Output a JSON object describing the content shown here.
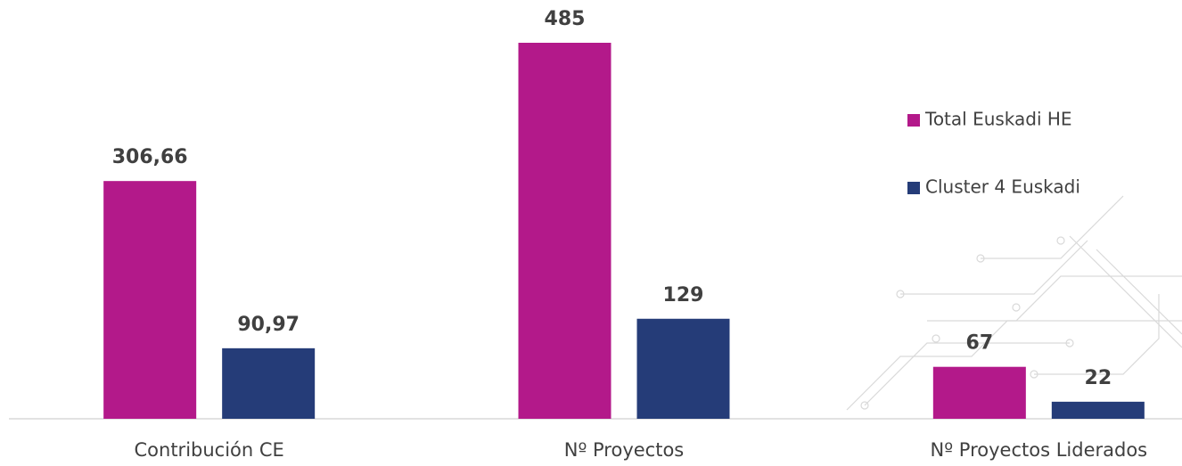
{
  "chart_data": {
    "type": "bar",
    "categories": [
      "Contribución CE",
      "Nº Proyectos",
      "Nº Proyectos Liderados"
    ],
    "series": [
      {
        "name": "Total Euskadi HE",
        "color": "#b3198a",
        "values": [
          306.66,
          485,
          67
        ],
        "value_labels": [
          "306,66",
          "485",
          "67"
        ]
      },
      {
        "name": "Cluster 4 Euskadi",
        "color": "#253c78",
        "values": [
          90.97,
          129,
          22
        ],
        "value_labels": [
          "90,97",
          "129",
          "22"
        ]
      }
    ],
    "legend": "right"
  }
}
